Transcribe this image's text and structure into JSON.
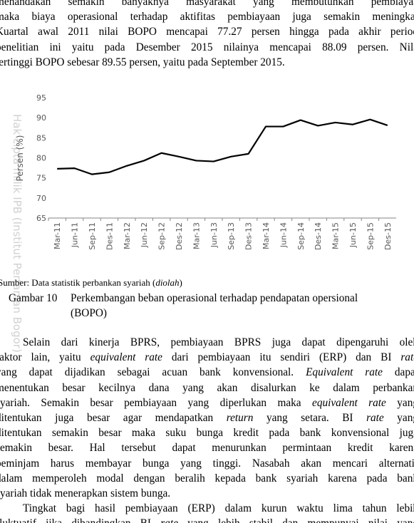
{
  "top_paragraph": [
    [
      "menandakan semakin banyaknya masyarakat yang membutuhkan pembiayaa"
    ],
    [
      "maka biaya operasional terhadap aktifitas pembiayaan juga semakin meningkat"
    ],
    [
      "Kuartal awal 2011 nilai BOPO mencapai 77.27 persen hingga pada akhir period"
    ],
    [
      "penelitian ini yaitu pada Desember 2015 nilainya mencapai 88.09 persen. Nila"
    ],
    [
      "tertinggi BOPO sebesar 89.55 persen, yaitu pada September 2015."
    ]
  ],
  "chart_data": {
    "type": "line",
    "y_label": "Persen (%)",
    "categories": [
      "Mar-11",
      "Jun-11",
      "Sep-11",
      "Des-11",
      "Mar-12",
      "Jun-12",
      "Sep-12",
      "Des-12",
      "Mar-13",
      "Jun-13",
      "Sep-13",
      "Des-13",
      "Mar-14",
      "Jun-14",
      "Sep-14",
      "Des-14",
      "Mar-15",
      "Jun-15",
      "Sep-15",
      "Des-15"
    ],
    "values": [
      77.27,
      77.4,
      75.9,
      76.4,
      78.0,
      79.3,
      81.2,
      80.3,
      79.3,
      79.1,
      80.3,
      81.0,
      87.8,
      87.8,
      89.4,
      88.0,
      88.8,
      88.3,
      89.55,
      88.09
    ],
    "color": "#000000",
    "ylim": [
      65,
      95
    ],
    "yticks": [
      65,
      70,
      75,
      80,
      85,
      90,
      95
    ]
  },
  "watermark": "Hak cipta milik IPB (Institut Pertanian Bogor)",
  "source": [
    "Sumber: Data statistik perbankan syariah (",
    "diolah",
    ")"
  ],
  "caption": {
    "label": "Gambar 10",
    "lines": [
      "Perkembangan beban operasional terhadap pendapatan opersional",
      "(BOPO)"
    ]
  },
  "paragraphs": [
    [
      [
        "Selain dari kinerja BPRS, pembiayaan BPRS juga dapat dipengaruhi oleh"
      ],
      [
        "faktor lain, yaitu ",
        "equivalent rate",
        " dari pembiayaan itu sendiri (ERP) dan BI ",
        "rate"
      ],
      [
        "yang dapat dijadikan sebagai acuan bank konvensional. ",
        "Equivalent rate",
        " dapat"
      ],
      [
        "menentukan besar kecilnya dana yang akan disalurkan ke dalam perbankan"
      ],
      [
        "syariah. Semakin besar pembiayaan yang diperlukan maka ",
        "equivalent rate",
        " yang"
      ],
      [
        "ditentukan juga besar agar mendapatkan ",
        "return",
        " yang setara. BI ",
        "rate",
        " yang"
      ],
      [
        "ditentukan semakin besar maka suku bunga kredit pada bank konvensional juga"
      ],
      [
        "semakin besar. Hal tersebut dapat menurunkan permintaan kredit karena"
      ],
      [
        "peminjam harus membayar bunga yang tinggi. Nasabah akan mencari alternatif"
      ],
      [
        "dalam memperoleh modal dengan beralih kepada bank syariah karena pada bank"
      ],
      [
        "syariah tidak menerapkan sistem bunga."
      ]
    ],
    [
      [
        "Tingkat bagi hasil pembiayaan (ERP) dalam kurun waktu lima tahun lebih"
      ],
      [
        "fluktuatif jika dibandingkan BI ",
        "rate",
        " yang lebih stabil dan mempunyai nilai yang"
      ]
    ]
  ]
}
